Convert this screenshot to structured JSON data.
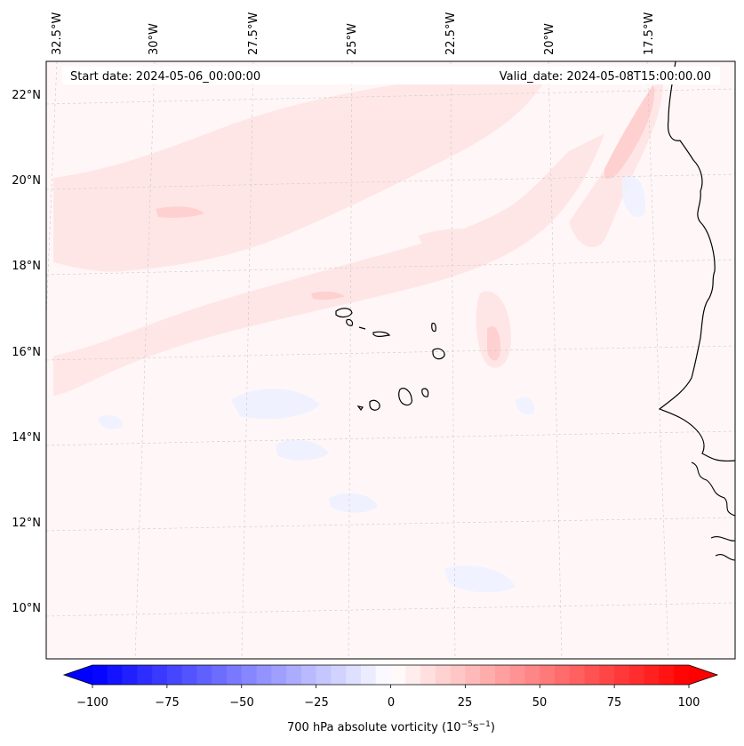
{
  "map": {
    "start_date": "Start date: 2024-05-06_00:00:00",
    "valid_date": "Valid_date: 2024-05-08T15:00:00.00",
    "lon_labels": [
      "32.5°W",
      "30°W",
      "27.5°W",
      "25°W",
      "22.5°W",
      "20°W",
      "17.5°W"
    ],
    "lat_labels": [
      "22°N",
      "20°N",
      "18°N",
      "16°N",
      "14°N",
      "12°N",
      "10°N"
    ],
    "gridlines": true
  },
  "colorbar": {
    "label": "700 hPa absolute vorticity (10",
    "label_exp1": "−5",
    "label_mid": "s",
    "label_exp2": "−1",
    "label_end": ")",
    "ticks": [
      "−100",
      "−75",
      "−50",
      "−25",
      "0",
      "25",
      "50",
      "75",
      "100"
    ],
    "vmin": -100,
    "vmax": 100,
    "colors": {
      "negative": "#0000ff",
      "zero": "#ffffff",
      "positive": "#ff0000"
    }
  }
}
